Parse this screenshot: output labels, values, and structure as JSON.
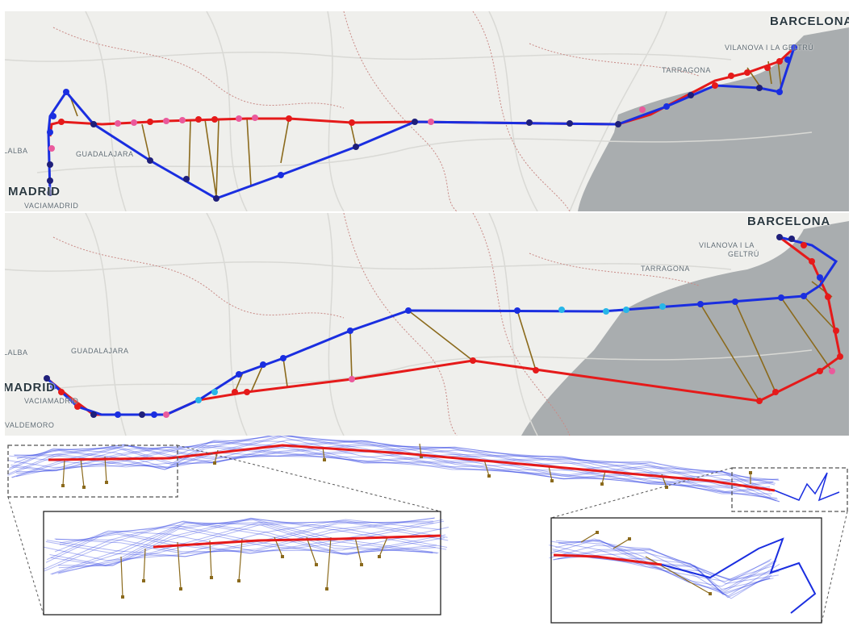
{
  "panels": {
    "top": {
      "labels": {
        "barcelona": "BARCELONA",
        "vilanova": "VILANOVA I LA GELTRÚ",
        "tarragona": "TARRAGONA",
        "guadalajara": "GUADALAJARA",
        "madrid": "MADRID",
        "alalba": "LALBA",
        "vaciamadrid": "VACIAMADRID"
      }
    },
    "middle": {
      "labels": {
        "barcelona": "BARCELONA",
        "vilanova_1": "VILANOVA I LA",
        "vilanova_2": "GELTRÚ",
        "tarragona": "TARRAGONA",
        "guadalajara": "GUADALAJARA",
        "madrid": "MADRID",
        "alalba": "LALBA",
        "vaciamadrid": "VACIAMADRID",
        "valdemoro": "VALDEMORO"
      }
    }
  },
  "colors": {
    "land": "#efefec",
    "sea": "#a9adaf",
    "road": "#d9d9d5",
    "border": "#c98a86",
    "route_a": "#1a2ee0",
    "route_b": "#e51a1a",
    "link": "#8b6a1c",
    "dot_dark": "#1f1f7a",
    "dot_pink": "#ea5a9c",
    "dot_cyan": "#27b6e8"
  },
  "icons": {
    "dot": "node-marker",
    "zoom_box": "dashed-zoom-rectangle"
  }
}
